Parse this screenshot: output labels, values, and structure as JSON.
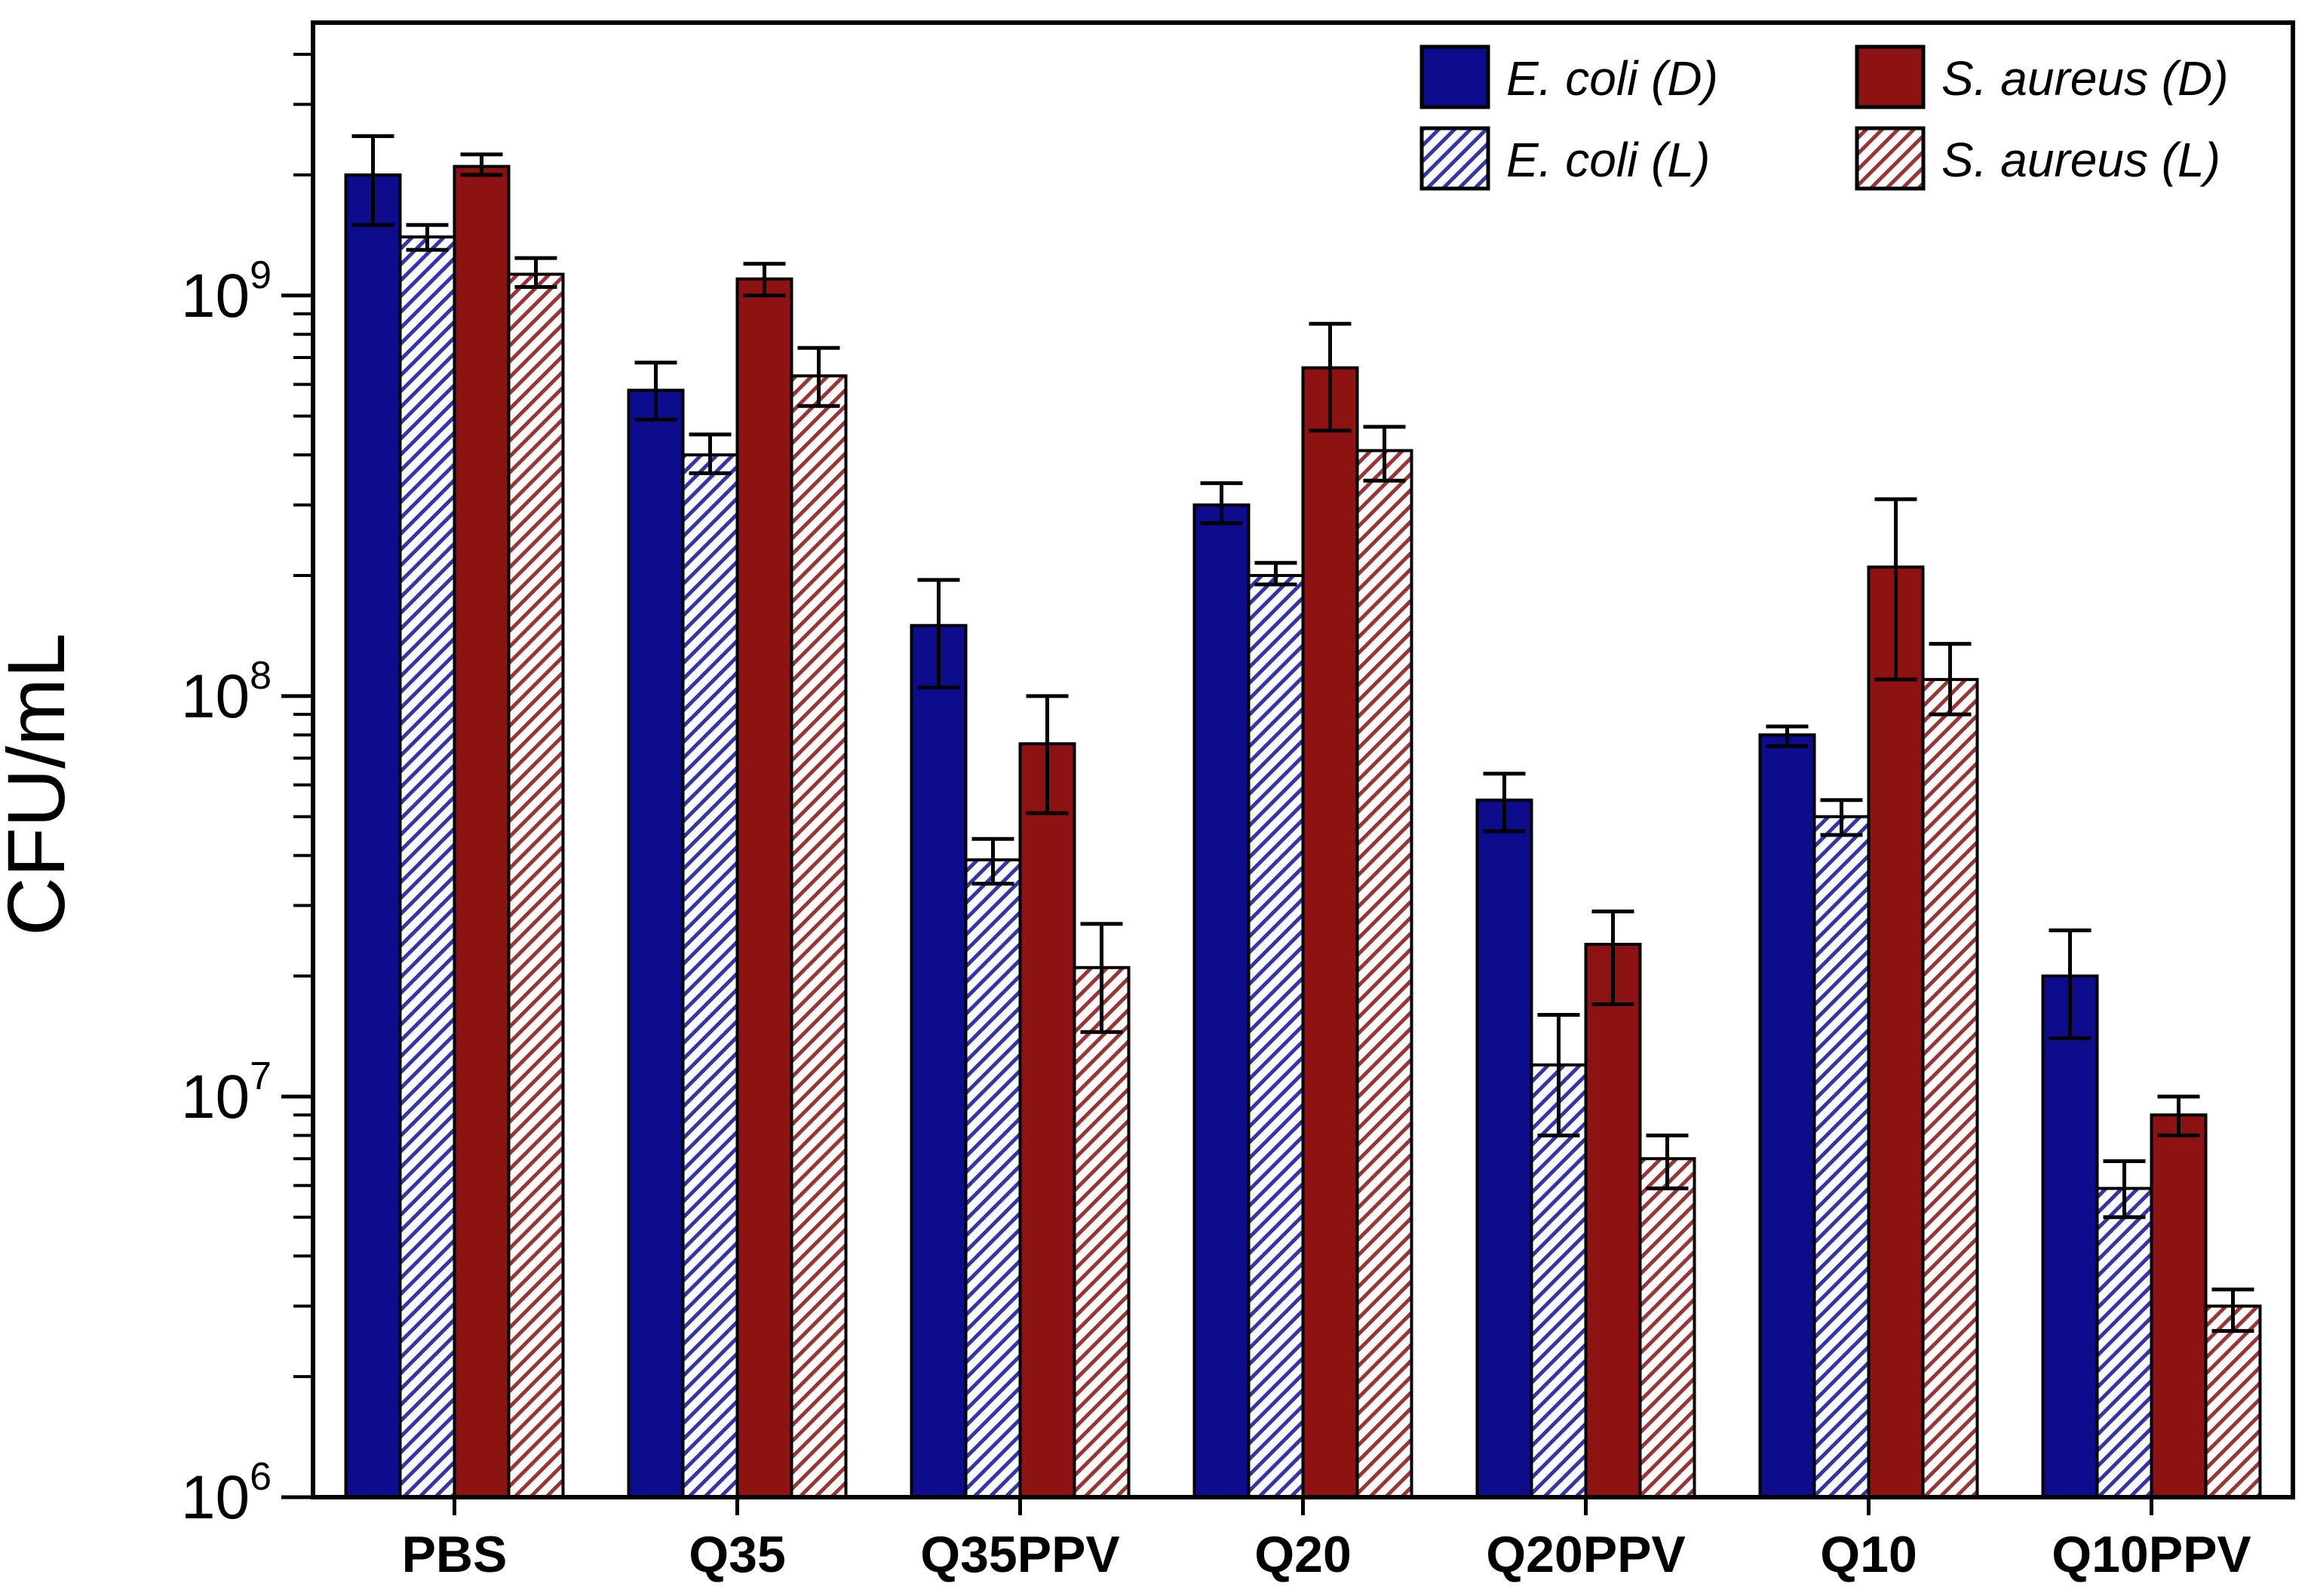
{
  "figure": {
    "background": "#ffffff",
    "frame_color": "#000000"
  },
  "chart_data": {
    "type": "bar",
    "title": "",
    "xlabel": "",
    "ylabel": "CFU/mL",
    "yscale": "log",
    "ylim": [
      1000000,
      4800000000
    ],
    "ytick_labels": [
      "10^6",
      "10^7",
      "10^8",
      "10^9"
    ],
    "ytick_exponents": [
      6,
      7,
      8,
      9
    ],
    "grid": false,
    "legend_position": "top-right-inside",
    "categories": [
      "PBS",
      "Q35",
      "Q35PPV",
      "Q20",
      "Q20PPV",
      "Q10",
      "Q10PPV"
    ],
    "series": [
      {
        "id": "ecoli-d",
        "name": "E. coli (D)",
        "hatch": false,
        "color": "#0c0c8d",
        "values": [
          2000000000.0,
          580000000.0,
          150000000.0,
          300000000.0,
          55000000.0,
          80000000.0,
          20000000.0
        ],
        "err_lo": [
          1500000000.0,
          490000000.0,
          105000000.0,
          270000000.0,
          46000000.0,
          75000000.0,
          14000000.0
        ],
        "err_hi": [
          2500000000.0,
          680000000.0,
          195000000.0,
          340000000.0,
          64000000.0,
          84000000.0,
          26000000.0
        ]
      },
      {
        "id": "ecoli-l",
        "name": "E. coli (L)",
        "hatch": true,
        "color": "#3434ad",
        "values": [
          1400000000.0,
          400000000.0,
          39000000.0,
          200000000.0,
          12000000.0,
          50000000.0,
          5900000.0
        ],
        "err_lo": [
          1300000000.0,
          360000000.0,
          34000000.0,
          190000000.0,
          8000000.0,
          45000000.0,
          5000000.0
        ],
        "err_hi": [
          1500000000.0,
          450000000.0,
          44000000.0,
          215000000.0,
          16000000.0,
          55000000.0,
          6900000.0
        ]
      },
      {
        "id": "saureus-d",
        "name": "S. aureus (D)",
        "hatch": false,
        "color": "#8d1212",
        "values": [
          2100000000.0,
          1100000000.0,
          76000000.0,
          660000000.0,
          24000000.0,
          210000000.0,
          9000000.0
        ],
        "err_lo": [
          2000000000.0,
          1000000000.0,
          51000000.0,
          460000000.0,
          17000000.0,
          110000000.0,
          8000000.0
        ],
        "err_hi": [
          2250000000.0,
          1200000000.0,
          100000000.0,
          850000000.0,
          29000000.0,
          310000000.0,
          10000000.0
        ]
      },
      {
        "id": "saureus-l",
        "name": "S. aureus (L)",
        "hatch": true,
        "color": "#9b3434",
        "values": [
          1130000000.0,
          630000000.0,
          21000000.0,
          410000000.0,
          7000000.0,
          110000000.0,
          3000000.0
        ],
        "err_lo": [
          1050000000.0,
          530000000.0,
          14500000.0,
          345000000.0,
          5900000.0,
          90000000.0,
          2600000.0
        ],
        "err_hi": [
          1240000000.0,
          740000000.0,
          27000000.0,
          470000000.0,
          8000000.0,
          135000000.0,
          3300000.0
        ]
      }
    ]
  }
}
